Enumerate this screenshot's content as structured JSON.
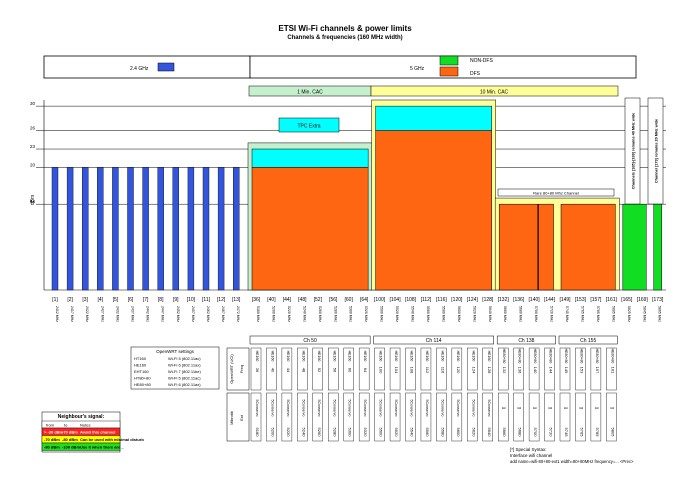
{
  "title": "ETSI Wi-Fi channels & power limits",
  "subtitle": "Channels & frequencies (160 MHz width)",
  "legend": {
    "band24_label": "2.4 GHz",
    "band5_label": "5 GHz",
    "nondfs_label": "NON-DFS",
    "dfs_label": "DFS",
    "cac1_label": "1 Min. CAC",
    "cac10_label": "10 Min. CAC",
    "tpc_label": "TPC Extra",
    "rare_label": "Rare 80+80 Mhz Channel",
    "note165": "Channels [165]-[169] remains 40 MHz wide",
    "note173": "Channel [173] remains 20 MHz wide"
  },
  "colors": {
    "band24": "#3355dd",
    "nondfs": "#11dd22",
    "dfs": "#ff6611",
    "tpc": "#00ffff",
    "cac1": "#c6efce",
    "cac10": "#ffff99",
    "grid": "#000000"
  },
  "chart_data": {
    "type": "bar",
    "ylabel": "dBm",
    "yticks": [
      14,
      20,
      23,
      26,
      30
    ],
    "ylim": [
      0,
      31
    ],
    "bars24": {
      "channels": [
        "[1]",
        "[2]",
        "[3]",
        "[4]",
        "[5]",
        "[6]",
        "[7]",
        "[8]",
        "[9]",
        "[10]",
        "[11]",
        "[12]",
        "[13]"
      ],
      "freqs": [
        "2412 MHz",
        "2417 MHz",
        "2422 MHz",
        "2427 MHz",
        "2432 MHz",
        "2437 MHz",
        "2442 MHz",
        "2447 MHz",
        "2452 MHz",
        "2457 MHz",
        "2462 MHz",
        "2467 MHz",
        "2472 MHz"
      ],
      "value": 20
    },
    "channels5": [
      "[36]",
      "[40]",
      "[44]",
      "[48]",
      "[52]",
      "[56]",
      "[60]",
      "[64]",
      "[100]",
      "[104]",
      "[108]",
      "[112]",
      "[116]",
      "[120]",
      "[124]",
      "[128]",
      "[132]",
      "[136]",
      "[140]",
      "[144]",
      "[149]",
      "[153]",
      "[157]",
      "[161]",
      "[165]",
      "[169]",
      "[173]"
    ],
    "freqs5": [
      "5180 MHz",
      "5200 MHz",
      "5220 MHz",
      "5240 MHz",
      "5260 MHz",
      "5280 MHz",
      "5300 MHz",
      "5320 MHz",
      "5500 MHz",
      "5520 MHz",
      "5540 MHz",
      "5560 MHz",
      "5580 MHz",
      "5600 MHz",
      "5620 MHz",
      "5640 MHz",
      "5660 MHz",
      "5680 MHz",
      "5700 MHz",
      "5720 MHz",
      "5745 MHz",
      "5765 MHz",
      "5785 MHz",
      "5805 MHz",
      "5825 MHz",
      "5845 MHz",
      "5865 MHz"
    ],
    "blocks": [
      {
        "from": 0,
        "to": 7,
        "base": 20,
        "tpc": 23
      },
      {
        "from": 8,
        "to": 15,
        "base": 26,
        "tpc": 30
      },
      {
        "from": 16,
        "to": 19,
        "base": 14
      },
      {
        "from": 20,
        "to": 23,
        "base": 14
      },
      {
        "from": 24,
        "to": 25,
        "base": 14,
        "nondfs": true
      },
      {
        "from": 26,
        "to": 26,
        "base": 14,
        "nondfs": true
      }
    ]
  },
  "table": {
    "groups": [
      {
        "label": "Ch 50",
        "cols": [
          [
            "36",
            "HE160",
            "5Conservo",
            "5180"
          ],
          [
            "40",
            "HE160",
            "5Conservo",
            "5200"
          ],
          [
            "44",
            "HE160",
            "5Conservo",
            "5220"
          ],
          [
            "48",
            "HE160",
            "5Conservo",
            "5240"
          ],
          [
            "52",
            "HE160",
            "5Conservo",
            "5260"
          ],
          [
            "56",
            "HE160",
            "5Conservo",
            "5280"
          ],
          [
            "60",
            "HE160",
            "5Conservo",
            "5300"
          ],
          [
            "64",
            "HE160",
            "5Conservo",
            "5320"
          ]
        ]
      },
      {
        "label": "Ch 114",
        "cols": [
          [
            "100",
            "HE160",
            "5Conservo",
            "5500"
          ],
          [
            "104",
            "HE160",
            "5Conservo",
            "5520"
          ],
          [
            "108",
            "HE160",
            "5Conservo",
            "5540"
          ],
          [
            "112",
            "HE160",
            "5Conservo",
            "5560"
          ],
          [
            "116",
            "HE160",
            "5Conservo",
            "5580"
          ],
          [
            "120",
            "HE160",
            "5Conservo",
            "5600"
          ],
          [
            "124",
            "HE160",
            "5Conservo",
            "5620"
          ],
          [
            "128",
            "HE160",
            "5Conservo",
            "5640"
          ]
        ]
      },
      {
        "label": "Ch 138",
        "cols": [
          [
            "132",
            "HE80+80",
            "[]",
            "5660"
          ],
          [
            "136",
            "HE80+80",
            "[]",
            "5680"
          ],
          [
            "140",
            "HE80+80",
            "[]",
            "5700"
          ],
          [
            "144",
            "HE80+80",
            "[]",
            "5720"
          ]
        ]
      },
      {
        "label": "Ch 155",
        "cols": [
          [
            "149",
            "HE80+80",
            "[]",
            "5745"
          ],
          [
            "153",
            "HE80+80",
            "[]",
            "5765"
          ],
          [
            "157",
            "HE80+80",
            "[]",
            "5785"
          ],
          [
            "161",
            "HE80+80",
            "[]",
            "5805"
          ]
        ]
      }
    ],
    "row_labels": [
      "OpenWRT (UCI)",
      "Mikrotik"
    ],
    "row_sub": [
      "Freq",
      "Ext"
    ]
  },
  "openwrt": {
    "title": "OpenWRT settings",
    "rows": [
      [
        "HT160",
        "Wi-Fi 5 (802.11ac)"
      ],
      [
        "HE160",
        "Wi-Fi 6 (802.11ax)"
      ],
      [
        "EHT160",
        "Wi-Fi 7 (802.11be)"
      ],
      [
        "HT80+80",
        "Wi-Fi 5 (802.11ac)"
      ],
      [
        "HE80+80",
        "Wi-Fi 6 (802.11ax)"
      ]
    ]
  },
  "signal": {
    "title": "Neighbour's signal:",
    "head": [
      "from",
      "to",
      "Notes"
    ],
    "rows": [
      {
        "from": "> -30 dBm",
        "to": "-70 dBm",
        "note": "Avoid this channel",
        "bg": "#ff2222"
      },
      {
        "from": "-70 dBm",
        "to": "-80 dBm",
        "note": "Can be used with minimal disturb",
        "bg": "#ffff00"
      },
      {
        "from": "-80 dBm",
        "to": "-100 dBm",
        "note": "Use it when there are ..",
        "bg": "#22dd22"
      }
    ]
  },
  "special": {
    "line1": "[*] Special Syntax:",
    "line2": "Interface wifi channel",
    "line3": "add name=wifi-80+80-ext1 width=80+80MHz frequency=... <Prec>"
  }
}
